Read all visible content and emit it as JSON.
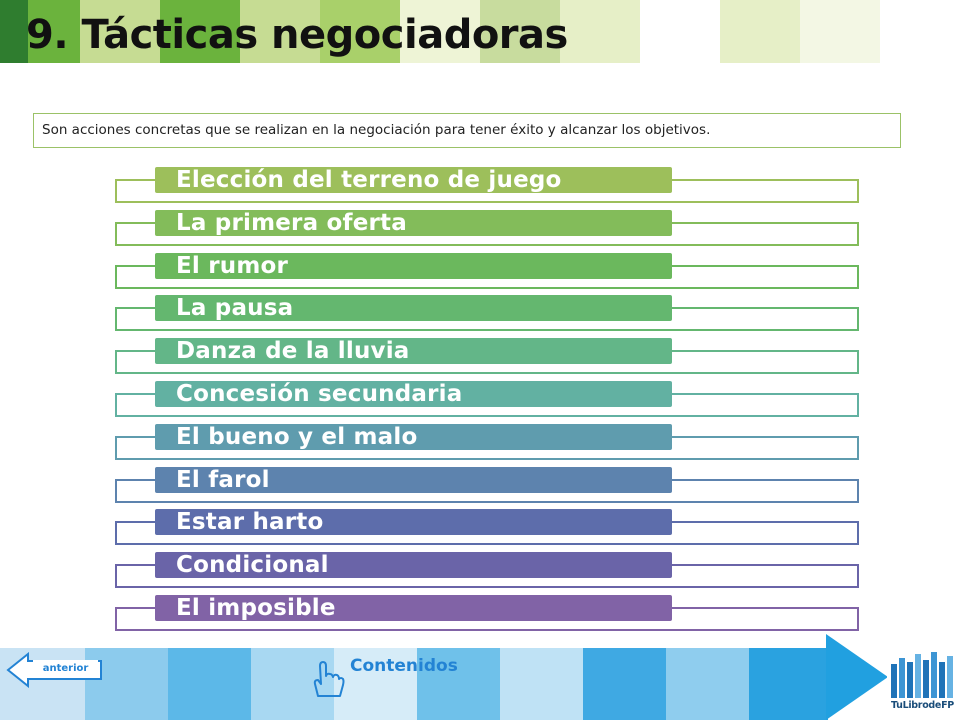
{
  "header": {
    "title": "9. Tácticas negociadoras",
    "band_colors": [
      "#2f7d2f",
      "#6bb33d",
      "#c6dc93",
      "#6bb33d",
      "#a9d06a",
      "#dfeabb",
      "#eef4d6",
      "#c8dc9e",
      "#e6efc7",
      "#f3f7e4"
    ]
  },
  "intro": {
    "text": "Son acciones concretas que se realizan en la negociación para tener éxito y alcanzar los objetivos."
  },
  "tactics": [
    {
      "label": "Elección del terreno de juego",
      "color": "#9dbf5b"
    },
    {
      "label": "La primera oferta",
      "color": "#83bc5a"
    },
    {
      "label": "El rumor",
      "color": "#6bb85d"
    },
    {
      "label": "La pausa",
      "color": "#64b76f"
    },
    {
      "label": "Danza de la lluvia",
      "color": "#63b688"
    },
    {
      "label": "Concesión secundaria",
      "color": "#62b1a2"
    },
    {
      "label": "El bueno y el malo",
      "color": "#5f9cae"
    },
    {
      "label": "El farol",
      "color": "#5d83ae"
    },
    {
      "label": "Estar harto",
      "color": "#5d6dab"
    },
    {
      "label": "Condicional",
      "color": "#6a64a8"
    },
    {
      "label": "El imposible",
      "color": "#8163a6"
    }
  ],
  "footer": {
    "anterior_label": "anterior",
    "contenidos_label": "Contenidos",
    "logo_text": "TuLibrodeFP",
    "hand_icon": "pointing-hand-icon",
    "accent_color": "#2383d4"
  }
}
